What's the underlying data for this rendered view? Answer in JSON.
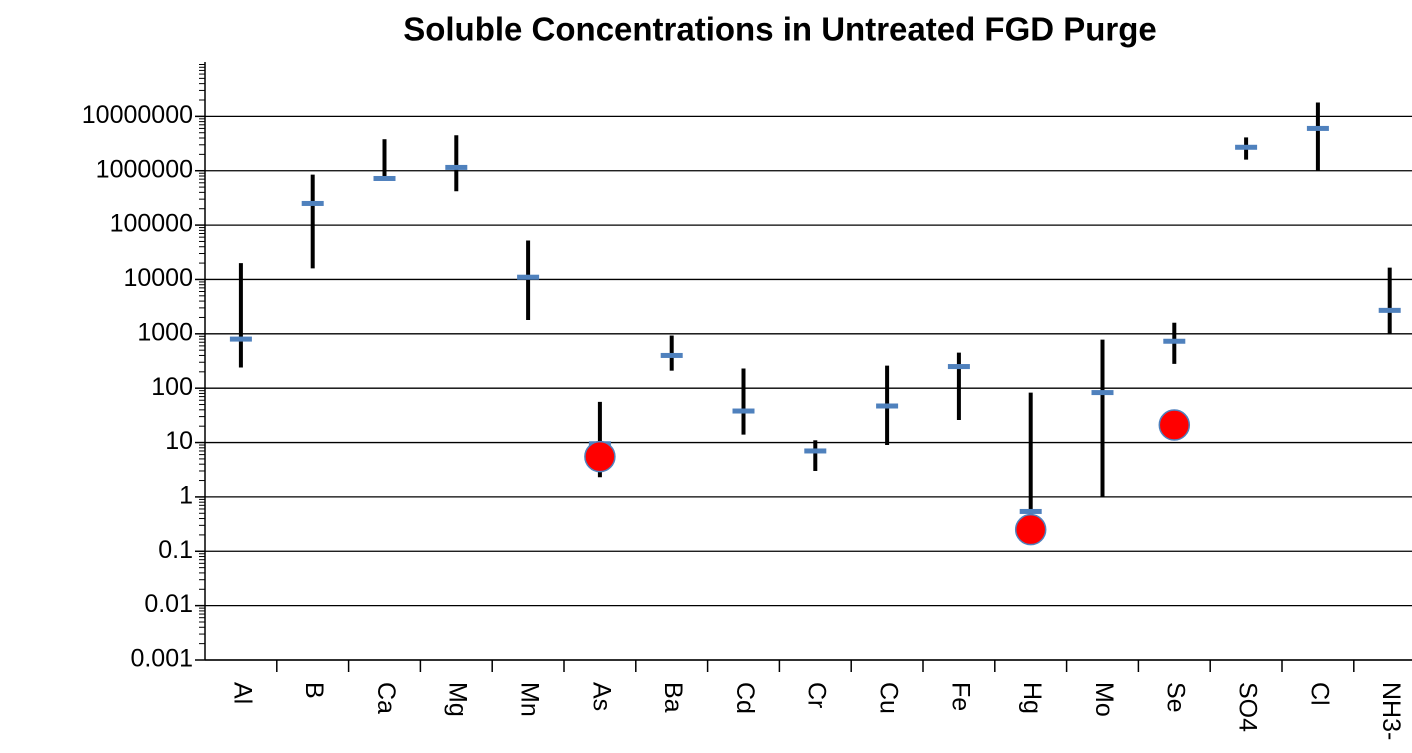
{
  "chart_data": {
    "type": "range",
    "title": "Soluble Concentrations in Untreated FGD Purge",
    "categories": [
      "Al",
      "B",
      "Ca",
      "Mg",
      "Mn",
      "As",
      "Ba",
      "Cd",
      "Cr",
      "Cu",
      "Fe",
      "Hg",
      "Mo",
      "Se",
      "SO4",
      "Cl",
      "NH3-"
    ],
    "values": [
      800,
      250000,
      720000,
      1150000,
      11000,
      9.5,
      400,
      38,
      7,
      47,
      250,
      0.54,
      83,
      730,
      2700000,
      6000000,
      2700
    ],
    "low": [
      240,
      16000,
      720000,
      420000,
      1800,
      2.3,
      210,
      14,
      3,
      9,
      26,
      0.3,
      1,
      280,
      1600000,
      1000000,
      1000
    ],
    "high": [
      20000,
      850000,
      3800000,
      4500000,
      52000,
      56,
      930,
      230,
      11,
      260,
      450,
      83,
      780,
      1600,
      4100000,
      18000000,
      16500
    ],
    "markers": [
      null,
      null,
      null,
      null,
      null,
      5.5,
      null,
      null,
      null,
      null,
      null,
      0.25,
      null,
      21,
      null,
      null,
      null
    ],
    "color": "#4f81bd",
    "range_color": "#000000",
    "marker_color": "#ff0000",
    "ylim": [
      0.001,
      100000000
    ],
    "yticks": [
      0.001,
      0.01,
      0.1,
      1,
      10,
      100,
      1000,
      10000,
      100000,
      1000000,
      10000000
    ],
    "log_y": true,
    "grid": true
  }
}
